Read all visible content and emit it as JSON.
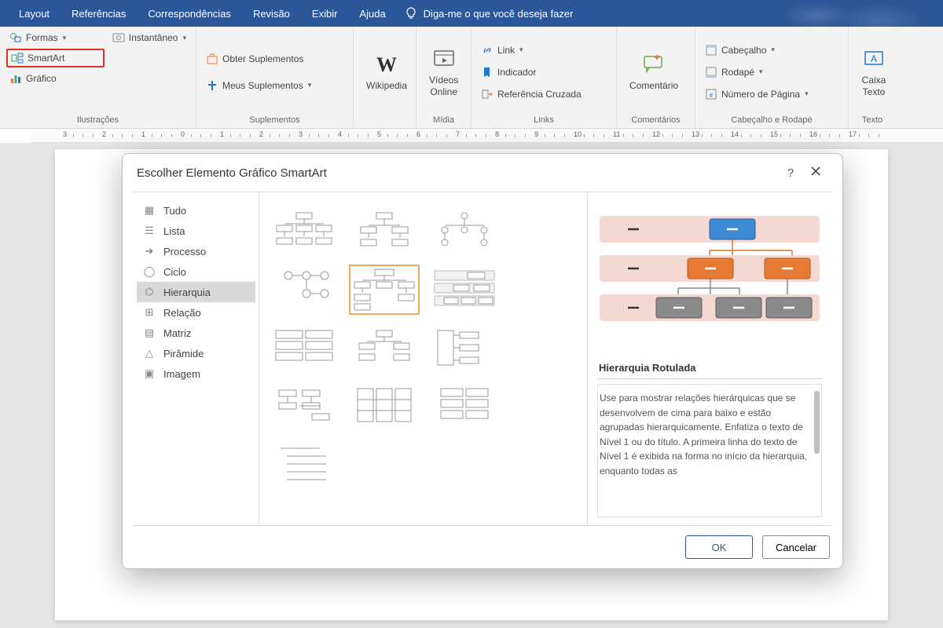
{
  "topbar": {
    "tabs": [
      "Layout",
      "Referências",
      "Correspondências",
      "Revisão",
      "Exibir",
      "Ajuda"
    ],
    "tellme": "Diga-me o que você deseja fazer"
  },
  "ribbon": {
    "ilustracoes": {
      "label": "Ilustrações",
      "formas": "Formas",
      "instantaneo": "Instantâneo",
      "smartart": "SmartArt",
      "grafico": "Gráfico"
    },
    "suplementos": {
      "label": "Suplementos",
      "obter": "Obter Suplementos",
      "meus": "Meus Suplementos"
    },
    "wikipedia": "Wikipedia",
    "midia": {
      "label": "Mídia",
      "videos": "Vídeos\nOnline"
    },
    "links": {
      "label": "Links",
      "link": "Link",
      "indicador": "Indicador",
      "refcruz": "Referência Cruzada"
    },
    "comentarios": {
      "label": "Comentários",
      "comentario": "Comentário"
    },
    "cabecalho_rodape": {
      "label": "Cabeçalho e Rodapé",
      "cabecalho": "Cabeçalho",
      "rodape": "Rodapé",
      "numpagina": "Número de Página"
    },
    "texto": {
      "label": "Texto",
      "caixa": "Caixa\nTexto"
    }
  },
  "ruler": {
    "start": -3,
    "end": 17
  },
  "dialog": {
    "title": "Escolher Elemento Gráfico SmartArt",
    "categories": [
      "Tudo",
      "Lista",
      "Processo",
      "Ciclo",
      "Hierarquia",
      "Relação",
      "Matriz",
      "Pirâmide",
      "Imagem"
    ],
    "selected_category_index": 4,
    "selected_thumb_index": 4,
    "preview": {
      "title": "Hierarquia Rotulada",
      "desc": "Use para mostrar relações hierárquicas que se desenvolvem de cima para baixo e estão agrupadas hierarquicamente. Enfatiza o texto de Nível 1 ou do título. A primeira linha do texto de Nível 1 é exibida na forma no início da hierarquia, enquanto todas as",
      "colors": {
        "row_bg": "#f4d9d2",
        "top": "#3d8bd4",
        "top_border": "#1f5fa0",
        "mid": "#e47a33",
        "mid_border": "#b85a1d",
        "bot": "#8a8a8a",
        "bot_border": "#5d5d5d",
        "dash": "#333333"
      }
    },
    "ok": "OK",
    "cancel": "Cancelar"
  }
}
